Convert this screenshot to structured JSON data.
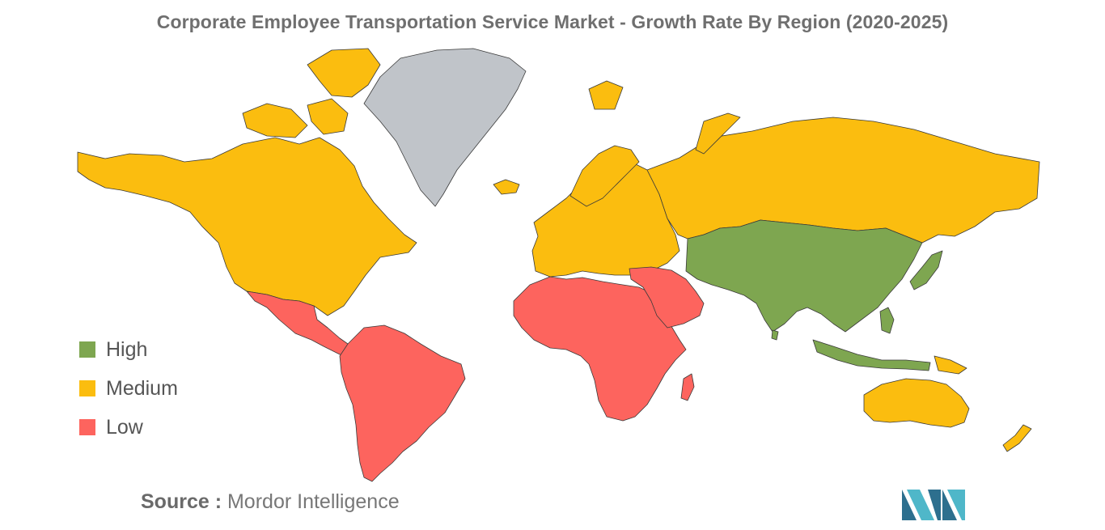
{
  "title": "Corporate Employee Transportation Service Market - Growth Rate By Region (2020-2025)",
  "legend": {
    "items": [
      {
        "label": "High",
        "color": "#7ea650"
      },
      {
        "label": "Medium",
        "color": "#fbbd0f"
      },
      {
        "label": "Low",
        "color": "#fd645e"
      }
    ]
  },
  "regions": {
    "high_color": "#7ea650",
    "medium_color": "#fbbd0f",
    "low_color": "#fd645e",
    "no_data_color": "#c0c4c9"
  },
  "source": {
    "label": "Source :",
    "value": "Mordor Intelligence"
  },
  "logo": {
    "icon": "mordor-intelligence-logo-icon",
    "color_dark": "#2d6f8e",
    "color_light": "#4fb7c9"
  }
}
